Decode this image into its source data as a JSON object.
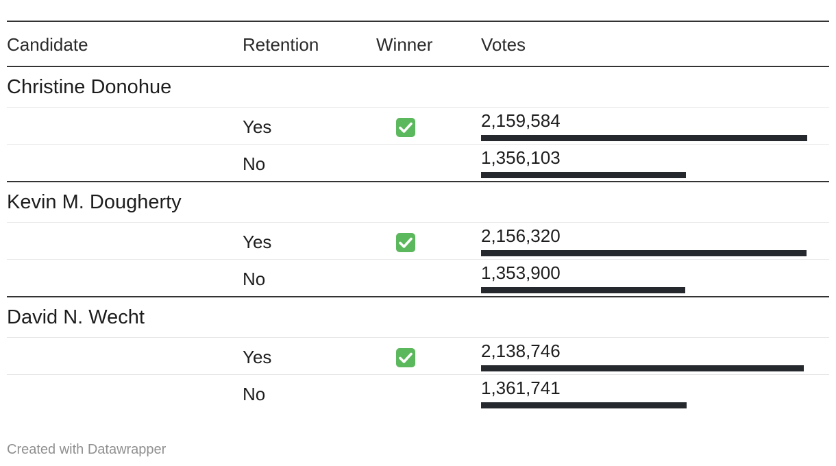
{
  "header": {
    "candidate": "Candidate",
    "retention": "Retention",
    "winner": "Winner",
    "votes": "Votes"
  },
  "footer": "Created with Datawrapper",
  "icons": {
    "winner": "check-mark-button-icon",
    "winner_color": "#5cb85c"
  },
  "bar_color": "#25282d",
  "chart_data": {
    "type": "table",
    "columns": [
      "Candidate",
      "Retention",
      "Winner",
      "Votes"
    ],
    "groups": [
      {
        "candidate": "Christine Donohue",
        "rows": [
          {
            "retention": "Yes",
            "winner": true,
            "votes": 2159584,
            "votes_label": "2,159,584"
          },
          {
            "retention": "No",
            "winner": false,
            "votes": 1356103,
            "votes_label": "1,356,103"
          }
        ]
      },
      {
        "candidate": "Kevin M. Dougherty",
        "rows": [
          {
            "retention": "Yes",
            "winner": true,
            "votes": 2156320,
            "votes_label": "2,156,320"
          },
          {
            "retention": "No",
            "winner": false,
            "votes": 1353900,
            "votes_label": "1,353,900"
          }
        ]
      },
      {
        "candidate": "David N. Wecht",
        "rows": [
          {
            "retention": "Yes",
            "winner": true,
            "votes": 2138746,
            "votes_label": "2,138,746"
          },
          {
            "retention": "No",
            "winner": false,
            "votes": 1361741,
            "votes_label": "1,361,741"
          }
        ]
      }
    ],
    "bar_max": 2159584
  }
}
